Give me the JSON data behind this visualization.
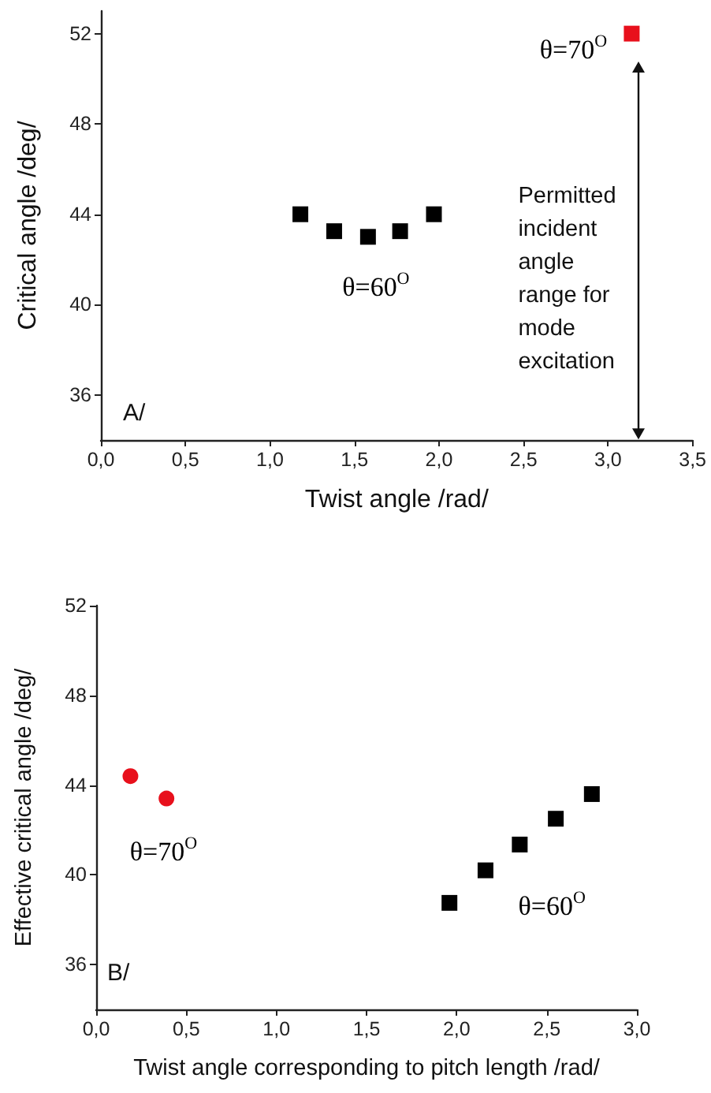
{
  "chart_data": [
    {
      "type": "scatter",
      "xlabel": "Twist angle /rad/",
      "ylabel": "Critical angle /deg/",
      "xlim": [
        0,
        3.5
      ],
      "xticks": [
        {
          "value": 0,
          "label": "0,0"
        },
        {
          "value": 0.5,
          "label": "0,5"
        },
        {
          "value": 1,
          "label": "1,0"
        },
        {
          "value": 1.5,
          "label": "1,5"
        },
        {
          "value": 2,
          "label": "2,0"
        },
        {
          "value": 2.5,
          "label": "2,5"
        },
        {
          "value": 3,
          "label": "3,0"
        },
        {
          "value": 3.5,
          "label": "3,5"
        }
      ],
      "ylim": [
        34,
        53
      ],
      "yticks": [
        36,
        40,
        44,
        48,
        52
      ],
      "series": [
        {
          "name": "θ=60$^{O}$",
          "color": "#000000",
          "marker": "square",
          "x": [
            1.18,
            1.38,
            1.58,
            1.77,
            1.97
          ],
          "values": [
            44.0,
            43.25,
            43.0,
            43.25,
            44.0
          ]
        },
        {
          "name": "θ=70$^{O}$",
          "color": "#e8101c",
          "marker": "square",
          "x": [
            3.14
          ],
          "values": [
            52.0
          ]
        }
      ],
      "annotations": [
        "A/",
        "Permitted incident angle range for mode excitation"
      ]
    },
    {
      "type": "scatter",
      "xlabel": "Twist angle corresponding to pitch length /rad/",
      "ylabel": "Effective critical angle /deg/",
      "xlim": [
        0,
        3
      ],
      "xticks": [
        {
          "value": 0,
          "label": "0,0"
        },
        {
          "value": 0.5,
          "label": "0,5"
        },
        {
          "value": 1,
          "label": "1,0"
        },
        {
          "value": 1.5,
          "label": "1,5"
        },
        {
          "value": 2,
          "label": "2,0"
        },
        {
          "value": 2.5,
          "label": "2,5"
        },
        {
          "value": 3,
          "label": "3,0"
        }
      ],
      "ylim": [
        34,
        52
      ],
      "yticks": [
        36,
        40,
        44,
        48,
        52
      ],
      "series": [
        {
          "name": "θ=60$^{O}$",
          "color": "#000000",
          "marker": "square",
          "x": [
            1.96,
            2.16,
            2.35,
            2.55,
            2.75
          ],
          "values": [
            38.75,
            40.2,
            41.35,
            42.5,
            43.6
          ]
        },
        {
          "name": "θ=70$^{O}$",
          "color": "#e8101c",
          "marker": "circle",
          "x": [
            0.19,
            0.39
          ],
          "values": [
            44.4,
            43.4
          ]
        }
      ],
      "annotations": [
        "B/"
      ]
    }
  ]
}
